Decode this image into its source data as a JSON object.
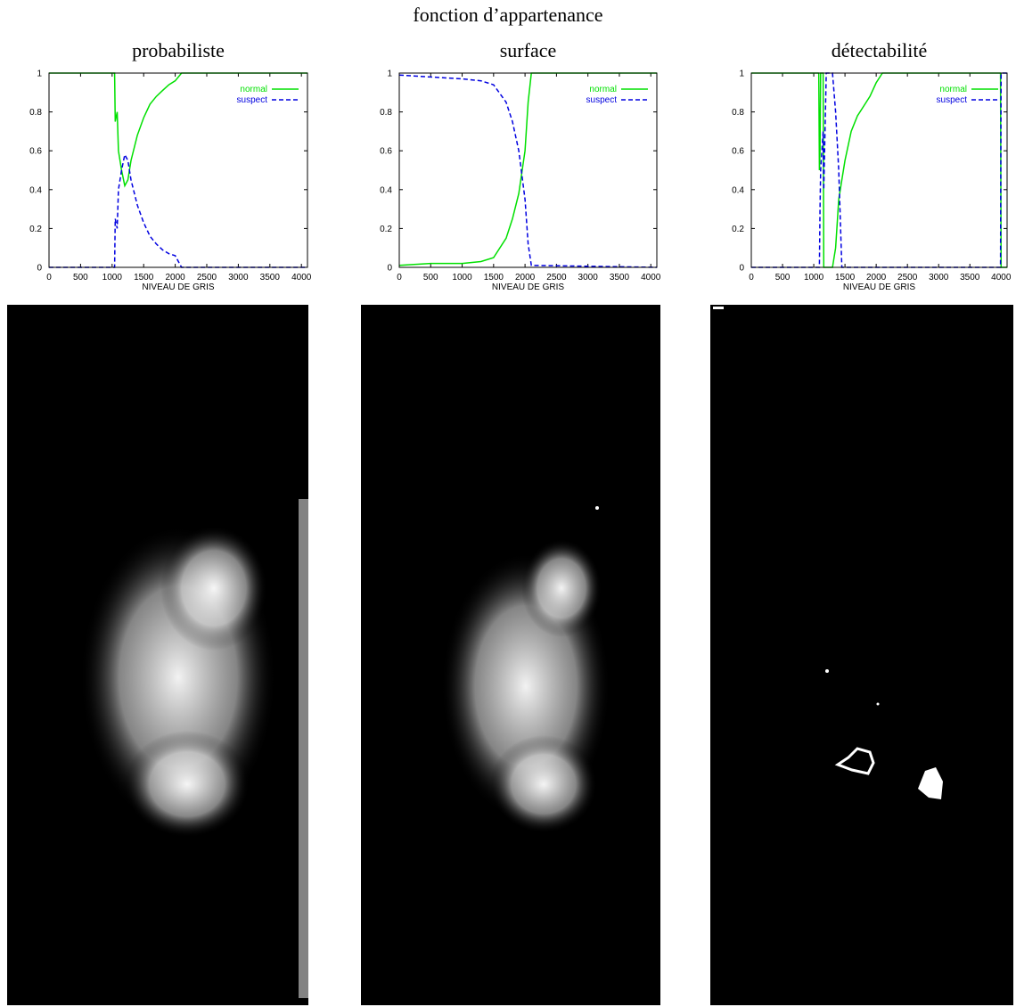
{
  "figure_title": "fonction d’appartenance",
  "chart_data": [
    {
      "type": "line",
      "title": "probabiliste",
      "x_label": "NIVEAU DE GRIS",
      "x": [
        0,
        1040,
        1050,
        1080,
        1100,
        1150,
        1200,
        1250,
        1300,
        1400,
        1500,
        1600,
        1700,
        1800,
        1900,
        2000,
        2100,
        4096
      ],
      "series": [
        {
          "name": "normal",
          "color": "#00e000",
          "style": "solid",
          "values": [
            1,
            1,
            0.75,
            0.8,
            0.6,
            0.5,
            0.42,
            0.45,
            0.55,
            0.68,
            0.77,
            0.84,
            0.88,
            0.91,
            0.94,
            0.96,
            1,
            1
          ]
        },
        {
          "name": "suspect",
          "color": "#0000e0",
          "style": "dashed",
          "values": [
            0,
            0,
            0.25,
            0.2,
            0.4,
            0.5,
            0.58,
            0.55,
            0.45,
            0.32,
            0.23,
            0.16,
            0.12,
            0.09,
            0.07,
            0.06,
            0,
            0
          ]
        }
      ],
      "xlim": [
        0,
        4096
      ],
      "ylim": [
        0,
        1
      ],
      "xticks": [
        0,
        500,
        1000,
        1500,
        2000,
        2500,
        3000,
        3500,
        4000
      ],
      "yticks": [
        0,
        0.2,
        0.4,
        0.6,
        0.8,
        1
      ],
      "legend": "upper right"
    },
    {
      "type": "line",
      "title": "surface",
      "x_label": "NIVEAU DE GRIS",
      "x": [
        0,
        500,
        1000,
        1300,
        1500,
        1700,
        1800,
        1900,
        2000,
        2050,
        2100,
        4096
      ],
      "series": [
        {
          "name": "normal",
          "color": "#00e000",
          "style": "solid",
          "values": [
            0.01,
            0.02,
            0.02,
            0.03,
            0.05,
            0.15,
            0.25,
            0.38,
            0.6,
            0.85,
            1,
            1
          ]
        },
        {
          "name": "suspect",
          "color": "#0000e0",
          "style": "dashed",
          "values": [
            0.99,
            0.98,
            0.97,
            0.96,
            0.94,
            0.85,
            0.75,
            0.6,
            0.35,
            0.12,
            0.01,
            0
          ]
        }
      ],
      "xlim": [
        0,
        4096
      ],
      "ylim": [
        0,
        1
      ],
      "xticks": [
        0,
        500,
        1000,
        1500,
        2000,
        2500,
        3000,
        3500,
        4000
      ],
      "yticks": [
        0,
        0.2,
        0.4,
        0.6,
        0.8,
        1
      ],
      "legend": "upper right"
    },
    {
      "type": "line",
      "title": "détectabilité",
      "x_label": "NIVEAU DE GRIS",
      "x": [
        0,
        1080,
        1090,
        1100,
        1110,
        1150,
        1160,
        1200,
        1300,
        1350,
        1400,
        1450,
        1500,
        1600,
        1700,
        1800,
        1900,
        2000,
        2100,
        3990,
        4000,
        4096
      ],
      "series": [
        {
          "name": "normal",
          "color": "#00e000",
          "style": "solid",
          "values": [
            1,
            1,
            0.5,
            0.6,
            1,
            1,
            0,
            0,
            0,
            0.1,
            0.35,
            0.45,
            0.55,
            0.7,
            0.78,
            0.83,
            0.88,
            0.95,
            1,
            1,
            0,
            0
          ]
        },
        {
          "name": "suspect",
          "color": "#0000e0",
          "style": "dashed",
          "values": [
            0,
            0,
            0,
            0.3,
            0.5,
            0.7,
            0.4,
            1,
            1,
            0.8,
            0.5,
            0,
            0,
            0,
            0,
            0,
            0,
            0,
            0,
            0,
            1,
            1
          ]
        }
      ],
      "xlim": [
        0,
        4096
      ],
      "ylim": [
        0,
        1
      ],
      "xticks": [
        0,
        500,
        1000,
        1500,
        2000,
        2500,
        3000,
        3500,
        4000
      ],
      "yticks": [
        0,
        0.2,
        0.4,
        0.6,
        0.8,
        1
      ],
      "legend": "upper right"
    }
  ]
}
